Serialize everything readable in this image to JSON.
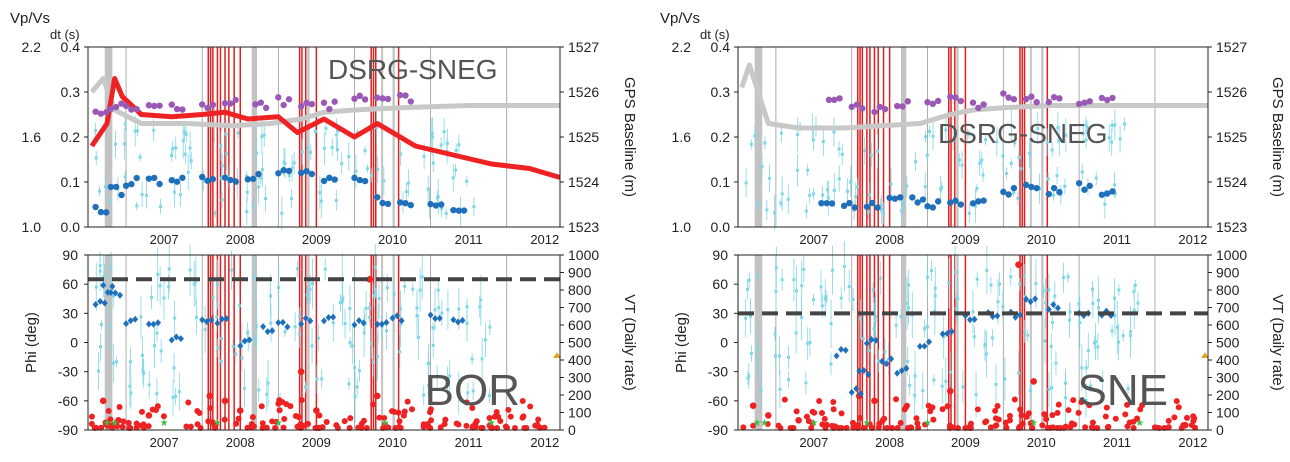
{
  "figure": {
    "time_ticks": [
      "2007",
      "2008",
      "2009",
      "2010",
      "2011",
      "2012"
    ],
    "colors": {
      "vpvs": "#9b59b6",
      "dt": "#1f6fba",
      "dt_errorbars": "#7fd7e6",
      "gps": "#c8c8c8",
      "eruption_bands": "#e02020",
      "gray_bands": "#b4b4b4",
      "vt": "#ee2222",
      "phi": "#1f6fba",
      "stars_green": "#44bb44",
      "triangle_orange": "#e8a020",
      "threshold_line": "#444444"
    }
  },
  "chart_data": [
    {
      "id": "top-left",
      "type": "scatter",
      "station_label": "DSRG-SNEG",
      "left_axis_labels": [
        "Vp/Vs",
        "dt (s)"
      ],
      "vpvs_ticks": [
        "2.2",
        "1.6",
        "1.0"
      ],
      "dt_ticks": [
        "0.4",
        "0.3",
        "0.2",
        "0.1",
        "0.0"
      ],
      "right_axis_label": "GPS Baseline (m)",
      "right_ticks": [
        "1527",
        "1526",
        "1525",
        "1524",
        "1523"
      ],
      "xlim": [
        2006.5,
        2012.7
      ],
      "dt_ylim": [
        0,
        0.4
      ],
      "gps_ylim": [
        1523,
        1527
      ],
      "series": [
        {
          "key": "vpvs_dt",
          "x": [
            2006.6,
            2006.8,
            2007.0,
            2007.3,
            2007.6,
            2008.0,
            2008.3,
            2008.7,
            2009.0,
            2009.3,
            2009.6,
            2010.0,
            2010.3,
            2010.6
          ],
          "y": [
            0.25,
            0.27,
            0.26,
            0.265,
            0.27,
            0.27,
            0.28,
            0.27,
            0.28,
            0.27,
            0.27,
            0.285,
            0.28,
            0.285
          ]
        },
        {
          "key": "dt",
          "x": [
            2006.6,
            2006.8,
            2007.0,
            2007.3,
            2007.6,
            2008.0,
            2008.3,
            2008.6,
            2009.0,
            2009.3,
            2009.6,
            2010.0,
            2010.3,
            2010.6,
            2011.0,
            2011.3
          ],
          "y": [
            0.04,
            0.08,
            0.1,
            0.1,
            0.11,
            0.11,
            0.11,
            0.115,
            0.12,
            0.12,
            0.1,
            0.1,
            0.06,
            0.05,
            0.05,
            0.045
          ]
        },
        {
          "key": "gps",
          "x": [
            2006.55,
            2006.7,
            2006.85,
            2007.2,
            2007.8,
            2008.4,
            2008.9,
            2009.3,
            2009.6,
            2010.0,
            2010.6,
            2011.5,
            2012.7
          ],
          "y": [
            1526.0,
            1526.3,
            1525.6,
            1525.3,
            1525.3,
            1525.25,
            1525.3,
            1525.4,
            1525.55,
            1525.6,
            1525.65,
            1525.7,
            1525.7
          ]
        },
        {
          "key": "baseline_red",
          "x": [
            2006.55,
            2006.75,
            2006.85,
            2006.95,
            2007.2,
            2007.6,
            2008.0,
            2008.3,
            2008.6,
            2009.0,
            2009.25,
            2009.6,
            2010.0,
            2010.3,
            2010.8,
            2011.3,
            2011.8,
            2012.3,
            2012.7
          ],
          "y": [
            1524.8,
            1525.3,
            1526.3,
            1525.9,
            1525.5,
            1525.45,
            1525.5,
            1525.55,
            1525.4,
            1525.45,
            1525.1,
            1525.4,
            1525.0,
            1525.3,
            1524.8,
            1524.6,
            1524.4,
            1524.3,
            1524.1
          ]
        }
      ]
    },
    {
      "id": "bottom-left",
      "type": "scatter",
      "station_label": "BOR",
      "left_axis_label": "Phi (deg)",
      "left_ticks": [
        "90",
        "60",
        "30",
        "0",
        "-30",
        "-60",
        "-90"
      ],
      "right_axis_label": "VT (Daily rate)",
      "right_ticks": [
        "1000",
        "900",
        "800",
        "700",
        "600",
        "500",
        "400",
        "300",
        "200",
        "100",
        "0"
      ],
      "xlim": [
        2006.5,
        2012.7
      ],
      "phi_ylim": [
        -90,
        90
      ],
      "threshold_phi": 65,
      "series": [
        {
          "key": "phi",
          "x": [
            2006.6,
            2006.7,
            2006.8,
            2007.0,
            2007.3,
            2007.6,
            2008.0,
            2008.2,
            2008.5,
            2008.8,
            2009.0,
            2009.3,
            2009.6,
            2010.0,
            2010.3,
            2010.5,
            2011.0,
            2011.3
          ],
          "y": [
            40,
            55,
            50,
            20,
            18,
            5,
            20,
            22,
            0,
            15,
            20,
            22,
            25,
            22,
            20,
            25,
            25,
            20
          ]
        },
        {
          "key": "vt_spikes",
          "x": [
            2006.7,
            2006.9,
            2007.3,
            2008.1,
            2008.3,
            2008.5,
            2009.3,
            2009.5,
            2010.2,
            2010.3,
            2012.4
          ],
          "y": [
            -60,
            -80,
            -75,
            -55,
            -60,
            -70,
            -30,
            -70,
            65,
            -55,
            -85
          ]
        }
      ]
    },
    {
      "id": "top-right",
      "type": "scatter",
      "station_label": "DSRG-SNEG",
      "left_axis_labels": [
        "Vp/Vs",
        "dt (s)"
      ],
      "vpvs_ticks": [
        "2.2",
        "1.6",
        "1.0"
      ],
      "dt_ticks": [
        "0.4",
        "0.3",
        "0.2",
        "0.1",
        "0.0"
      ],
      "right_axis_label": "GPS Baseline (m)",
      "right_ticks": [
        "1527",
        "1526",
        "1525",
        "1524",
        "1523"
      ],
      "xlim": [
        2006.5,
        2012.7
      ],
      "dt_ylim": [
        0,
        0.4
      ],
      "gps_ylim": [
        1523,
        1527
      ],
      "series": [
        {
          "key": "vpvs_dt",
          "x": [
            2007.7,
            2008.0,
            2008.3,
            2008.6,
            2009.0,
            2009.3,
            2009.6,
            2010.0,
            2010.3,
            2010.6,
            2011.0,
            2011.3
          ],
          "y": [
            0.28,
            0.27,
            0.26,
            0.27,
            0.28,
            0.28,
            0.27,
            0.29,
            0.28,
            0.28,
            0.28,
            0.28
          ]
        },
        {
          "key": "dt",
          "x": [
            2007.6,
            2007.9,
            2008.2,
            2008.5,
            2008.8,
            2009.0,
            2009.3,
            2009.6,
            2010.0,
            2010.3,
            2010.6,
            2011.0,
            2011.3
          ],
          "y": [
            0.05,
            0.05,
            0.05,
            0.06,
            0.06,
            0.05,
            0.05,
            0.05,
            0.08,
            0.09,
            0.08,
            0.09,
            0.08
          ]
        },
        {
          "key": "gps",
          "x": [
            2006.55,
            2006.65,
            2006.9,
            2007.3,
            2007.9,
            2008.4,
            2008.9,
            2009.3,
            2009.6,
            2010.0,
            2010.6,
            2011.5,
            2012.7
          ],
          "y": [
            1526.1,
            1526.6,
            1525.3,
            1525.2,
            1525.2,
            1525.25,
            1525.3,
            1525.5,
            1525.6,
            1525.65,
            1525.7,
            1525.7,
            1525.7
          ]
        }
      ]
    },
    {
      "id": "bottom-right",
      "type": "scatter",
      "station_label": "SNE",
      "left_axis_label": "Phi (deg)",
      "left_ticks": [
        "90",
        "60",
        "30",
        "0",
        "-30",
        "-60",
        "-90"
      ],
      "right_axis_label": "VT (Daily rate)",
      "right_ticks": [
        "1000",
        "900",
        "800",
        "700",
        "600",
        "500",
        "400",
        "300",
        "200",
        "100",
        "0"
      ],
      "xlim": [
        2006.5,
        2012.7
      ],
      "phi_ylim": [
        -90,
        90
      ],
      "threshold_phi": 30,
      "series": [
        {
          "key": "phi",
          "x": [
            2007.8,
            2008.0,
            2008.1,
            2008.2,
            2008.4,
            2008.6,
            2008.9,
            2009.2,
            2009.5,
            2009.8,
            2010.1,
            2010.3,
            2010.6,
            2011.0,
            2011.3
          ],
          "y": [
            -10,
            -50,
            -30,
            0,
            -20,
            -30,
            0,
            10,
            25,
            30,
            30,
            45,
            35,
            30,
            30
          ]
        },
        {
          "key": "vt_spikes",
          "x": [
            2006.7,
            2006.9,
            2007.3,
            2008.1,
            2008.3,
            2009.3,
            2010.2,
            2010.4,
            2012.4
          ],
          "y": [
            -65,
            -75,
            -80,
            -55,
            -60,
            -50,
            80,
            -40,
            -85
          ]
        }
      ]
    }
  ]
}
